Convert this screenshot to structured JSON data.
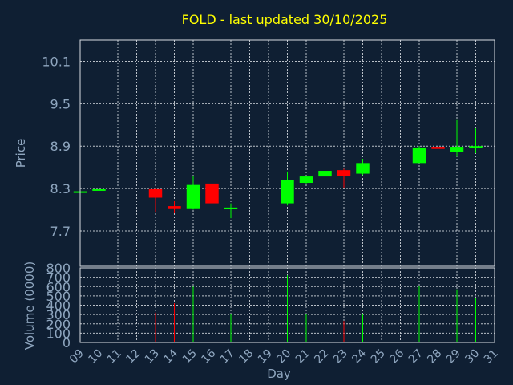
{
  "title": "FOLD - last updated 30/10/2025",
  "colors": {
    "background": "#0f1f33",
    "up": "#00ff00",
    "down": "#ff0000",
    "grid": "#d8dde3",
    "text": "#8fa6bf",
    "title": "#ffff00"
  },
  "chart_data": [
    {
      "type": "candlestick",
      "ylabel": "Price",
      "ylim": [
        7.2,
        10.4
      ],
      "yticks": [
        7.7,
        8.3,
        8.9,
        9.5,
        10.1
      ],
      "ytick_labels": [
        "7.7",
        "8.3",
        "8.9",
        "9.5",
        "10.1"
      ],
      "grid": true,
      "candles": [
        {
          "day": 9,
          "open": 8.24,
          "high": 8.26,
          "low": 8.22,
          "close": 8.26
        },
        {
          "day": 10,
          "open": 8.28,
          "high": 8.33,
          "low": 8.15,
          "close": 8.29
        },
        {
          "day": 13,
          "open": 8.29,
          "high": 8.31,
          "low": 7.97,
          "close": 8.17
        },
        {
          "day": 14,
          "open": 8.05,
          "high": 8.13,
          "low": 7.95,
          "close": 8.02
        },
        {
          "day": 15,
          "open": 8.02,
          "high": 8.48,
          "low": 8.0,
          "close": 8.35
        },
        {
          "day": 16,
          "open": 8.37,
          "high": 8.46,
          "low": 8.07,
          "close": 8.09
        },
        {
          "day": 17,
          "open": 8.01,
          "high": 8.09,
          "low": 7.88,
          "close": 8.03
        },
        {
          "day": 20,
          "open": 8.09,
          "high": 8.54,
          "low": 8.06,
          "close": 8.42
        },
        {
          "day": 21,
          "open": 8.38,
          "high": 8.48,
          "low": 8.37,
          "close": 8.47
        },
        {
          "day": 22,
          "open": 8.47,
          "high": 8.59,
          "low": 8.36,
          "close": 8.55
        },
        {
          "day": 23,
          "open": 8.56,
          "high": 8.58,
          "low": 8.31,
          "close": 8.48
        },
        {
          "day": 24,
          "open": 8.51,
          "high": 8.72,
          "low": 8.49,
          "close": 8.66
        },
        {
          "day": 27,
          "open": 8.66,
          "high": 8.9,
          "low": 8.66,
          "close": 8.88
        },
        {
          "day": 28,
          "open": 8.89,
          "high": 9.06,
          "low": 8.78,
          "close": 8.86
        },
        {
          "day": 29,
          "open": 8.82,
          "high": 9.28,
          "low": 8.75,
          "close": 8.89
        },
        {
          "day": 30,
          "open": 8.88,
          "high": 9.15,
          "low": 8.8,
          "close": 8.9
        }
      ]
    },
    {
      "type": "bar",
      "ylabel": "Volume (0000)",
      "xlabel": "Day",
      "ylim": [
        0,
        800
      ],
      "yticks": [
        0,
        100,
        200,
        300,
        400,
        500,
        600,
        700,
        800
      ],
      "ytick_labels": [
        "0",
        "100",
        "200",
        "300",
        "400",
        "500",
        "600",
        "700",
        "800"
      ],
      "x_tick_labels": [
        "09",
        "10",
        "11",
        "12",
        "13",
        "14",
        "15",
        "16",
        "17",
        "18",
        "19",
        "20",
        "21",
        "22",
        "23",
        "24",
        "25",
        "26",
        "27",
        "28",
        "29",
        "30",
        "31"
      ],
      "xlim": [
        9,
        31
      ],
      "bars": [
        {
          "day": 10,
          "value": 360,
          "direction": "up"
        },
        {
          "day": 13,
          "value": 320,
          "direction": "down"
        },
        {
          "day": 14,
          "value": 420,
          "direction": "down"
        },
        {
          "day": 15,
          "value": 600,
          "direction": "up"
        },
        {
          "day": 16,
          "value": 560,
          "direction": "down"
        },
        {
          "day": 17,
          "value": 310,
          "direction": "up"
        },
        {
          "day": 20,
          "value": 720,
          "direction": "up"
        },
        {
          "day": 21,
          "value": 310,
          "direction": "up"
        },
        {
          "day": 22,
          "value": 330,
          "direction": "up"
        },
        {
          "day": 23,
          "value": 230,
          "direction": "down"
        },
        {
          "day": 24,
          "value": 300,
          "direction": "up"
        },
        {
          "day": 27,
          "value": 610,
          "direction": "up"
        },
        {
          "day": 28,
          "value": 390,
          "direction": "down"
        },
        {
          "day": 29,
          "value": 570,
          "direction": "up"
        },
        {
          "day": 30,
          "value": 480,
          "direction": "up"
        }
      ]
    }
  ]
}
